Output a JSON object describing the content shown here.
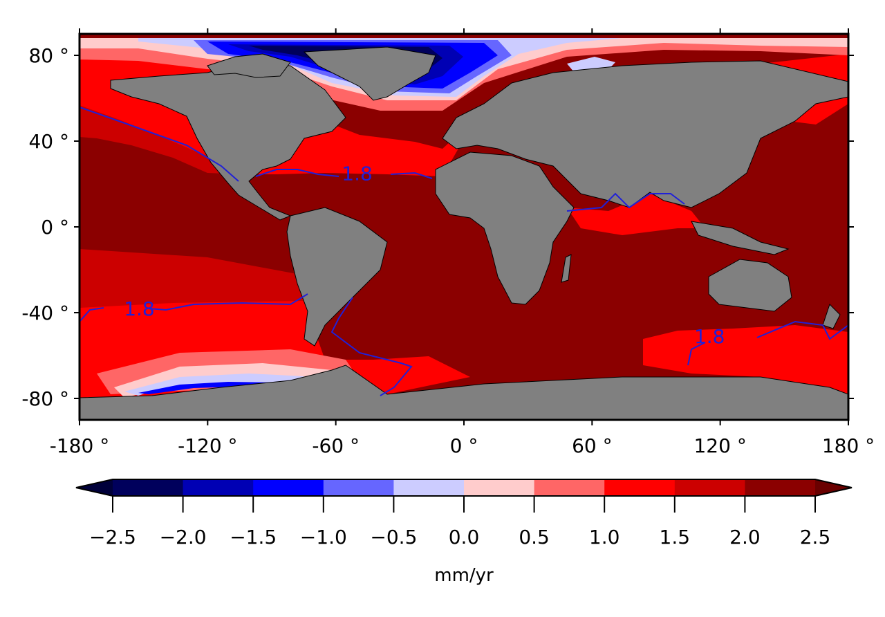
{
  "map": {
    "type": "contourf",
    "projection": "equirectangular",
    "lon_range": [
      -180,
      180
    ],
    "lat_range": [
      -90,
      90
    ],
    "x_ticks": [
      {
        "value": -180,
        "label": "-180 °"
      },
      {
        "value": -120,
        "label": "-120 °"
      },
      {
        "value": -60,
        "label": "-60 °"
      },
      {
        "value": 0,
        "label": "0 °"
      },
      {
        "value": 60,
        "label": "60 °"
      },
      {
        "value": 120,
        "label": "120 °"
      },
      {
        "value": 180,
        "label": "180 °"
      }
    ],
    "y_ticks": [
      {
        "value": 80,
        "label": "80 °"
      },
      {
        "value": 40,
        "label": "40 °"
      },
      {
        "value": 0,
        "label": "0 °"
      },
      {
        "value": -40,
        "label": "-40 °"
      },
      {
        "value": -80,
        "label": "-80 °"
      }
    ],
    "contour_labels": [
      {
        "text": "1.8",
        "lon": -50,
        "lat": 25
      },
      {
        "text": "1.8",
        "lon": -152,
        "lat": -38
      },
      {
        "text": "1.8",
        "lon": 115,
        "lat": -51
      }
    ],
    "land_color": "#808080",
    "contour_line_color": "#2020d8"
  },
  "colorbar": {
    "levels": [
      -2.5,
      -2.0,
      -1.5,
      -1.0,
      -0.5,
      0.0,
      0.5,
      1.0,
      1.5,
      2.0,
      2.5
    ],
    "tick_labels": [
      "−2.5",
      "−2.0",
      "−1.5",
      "−1.0",
      "−0.5",
      "0.0",
      "0.5",
      "1.0",
      "1.5",
      "2.0",
      "2.5"
    ],
    "colors": [
      "#00005c",
      "#0000b4",
      "#0000ff",
      "#6666ff",
      "#ccccff",
      "#ffcccc",
      "#ff6666",
      "#ff0000",
      "#cc0000",
      "#8b0000"
    ],
    "under_color": "#00003a",
    "over_color": "#6a0000",
    "label": "mm/yr"
  }
}
